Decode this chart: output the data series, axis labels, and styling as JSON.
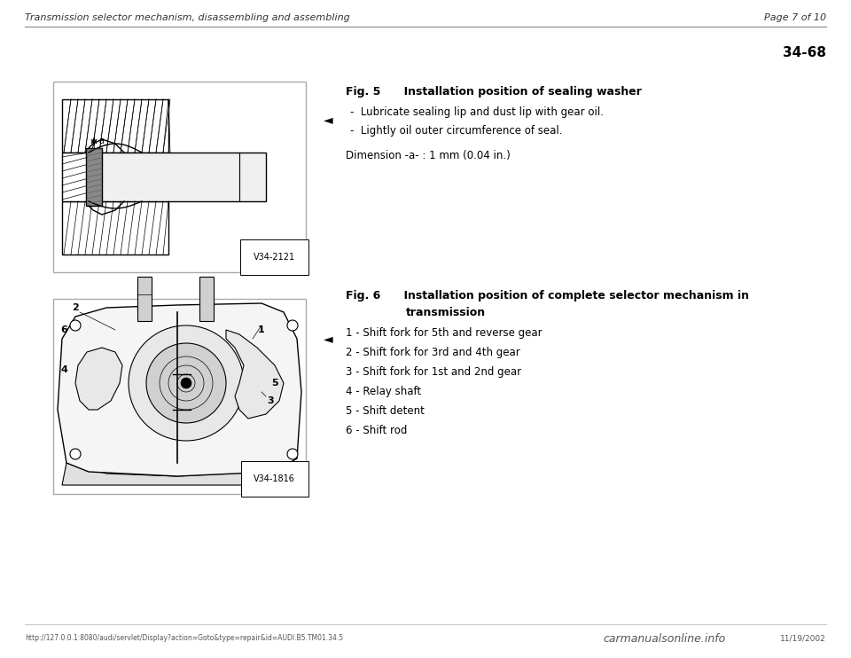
{
  "bg_color": "#ffffff",
  "header_text": "Transmission selector mechanism, disassembling and assembling",
  "header_page": "Page 7 of 10",
  "section_number": "34-68",
  "fig5": {
    "label": "Fig. 5",
    "title": "Installation position of sealing washer",
    "bullet1": "-  Lubricate sealing lip and dust lip with gear oil.",
    "bullet2": "-  Lightly oil outer circumference of seal.",
    "dimension": "Dimension -a- : 1 mm (0.04 in.)",
    "fig_code": "V34-2121"
  },
  "fig6": {
    "label": "Fig. 6",
    "title_line1": "Installation position of complete selector mechanism in",
    "title_line2": "transmission",
    "items": [
      "1 - Shift fork for 5th and reverse gear",
      "2 - Shift fork for 3rd and 4th gear",
      "3 - Shift fork for 1st and 2nd gear",
      "4 - Relay shaft",
      "5 - Shift detent",
      "6 - Shift rod"
    ],
    "fig_code": "V34-1816"
  },
  "footer_url": "http://127.0.0.1:8080/audi/servlet/Display?action=Goto&type=repair&id=AUDI.B5.TM01.34.5",
  "footer_date": "11/19/2002",
  "footer_brand": "carmanualsonline.info"
}
